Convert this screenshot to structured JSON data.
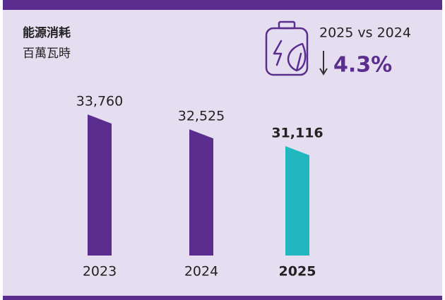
{
  "chart_data": {
    "type": "bar",
    "title": "能源消耗",
    "subtitle": "百萬瓦時",
    "annotations": {
      "comparison": "2025 vs 2024",
      "change": "4.3%"
    },
    "categories": [
      "2023",
      "2024",
      "2025"
    ],
    "values": [
      33760,
      32525,
      31116
    ],
    "value_labels": [
      "33,760",
      "32,525",
      "31,116"
    ],
    "colors": [
      "#5b2d8e",
      "#5b2d8e",
      "#20b7bf"
    ],
    "ylim": [
      22000,
      34000
    ]
  }
}
